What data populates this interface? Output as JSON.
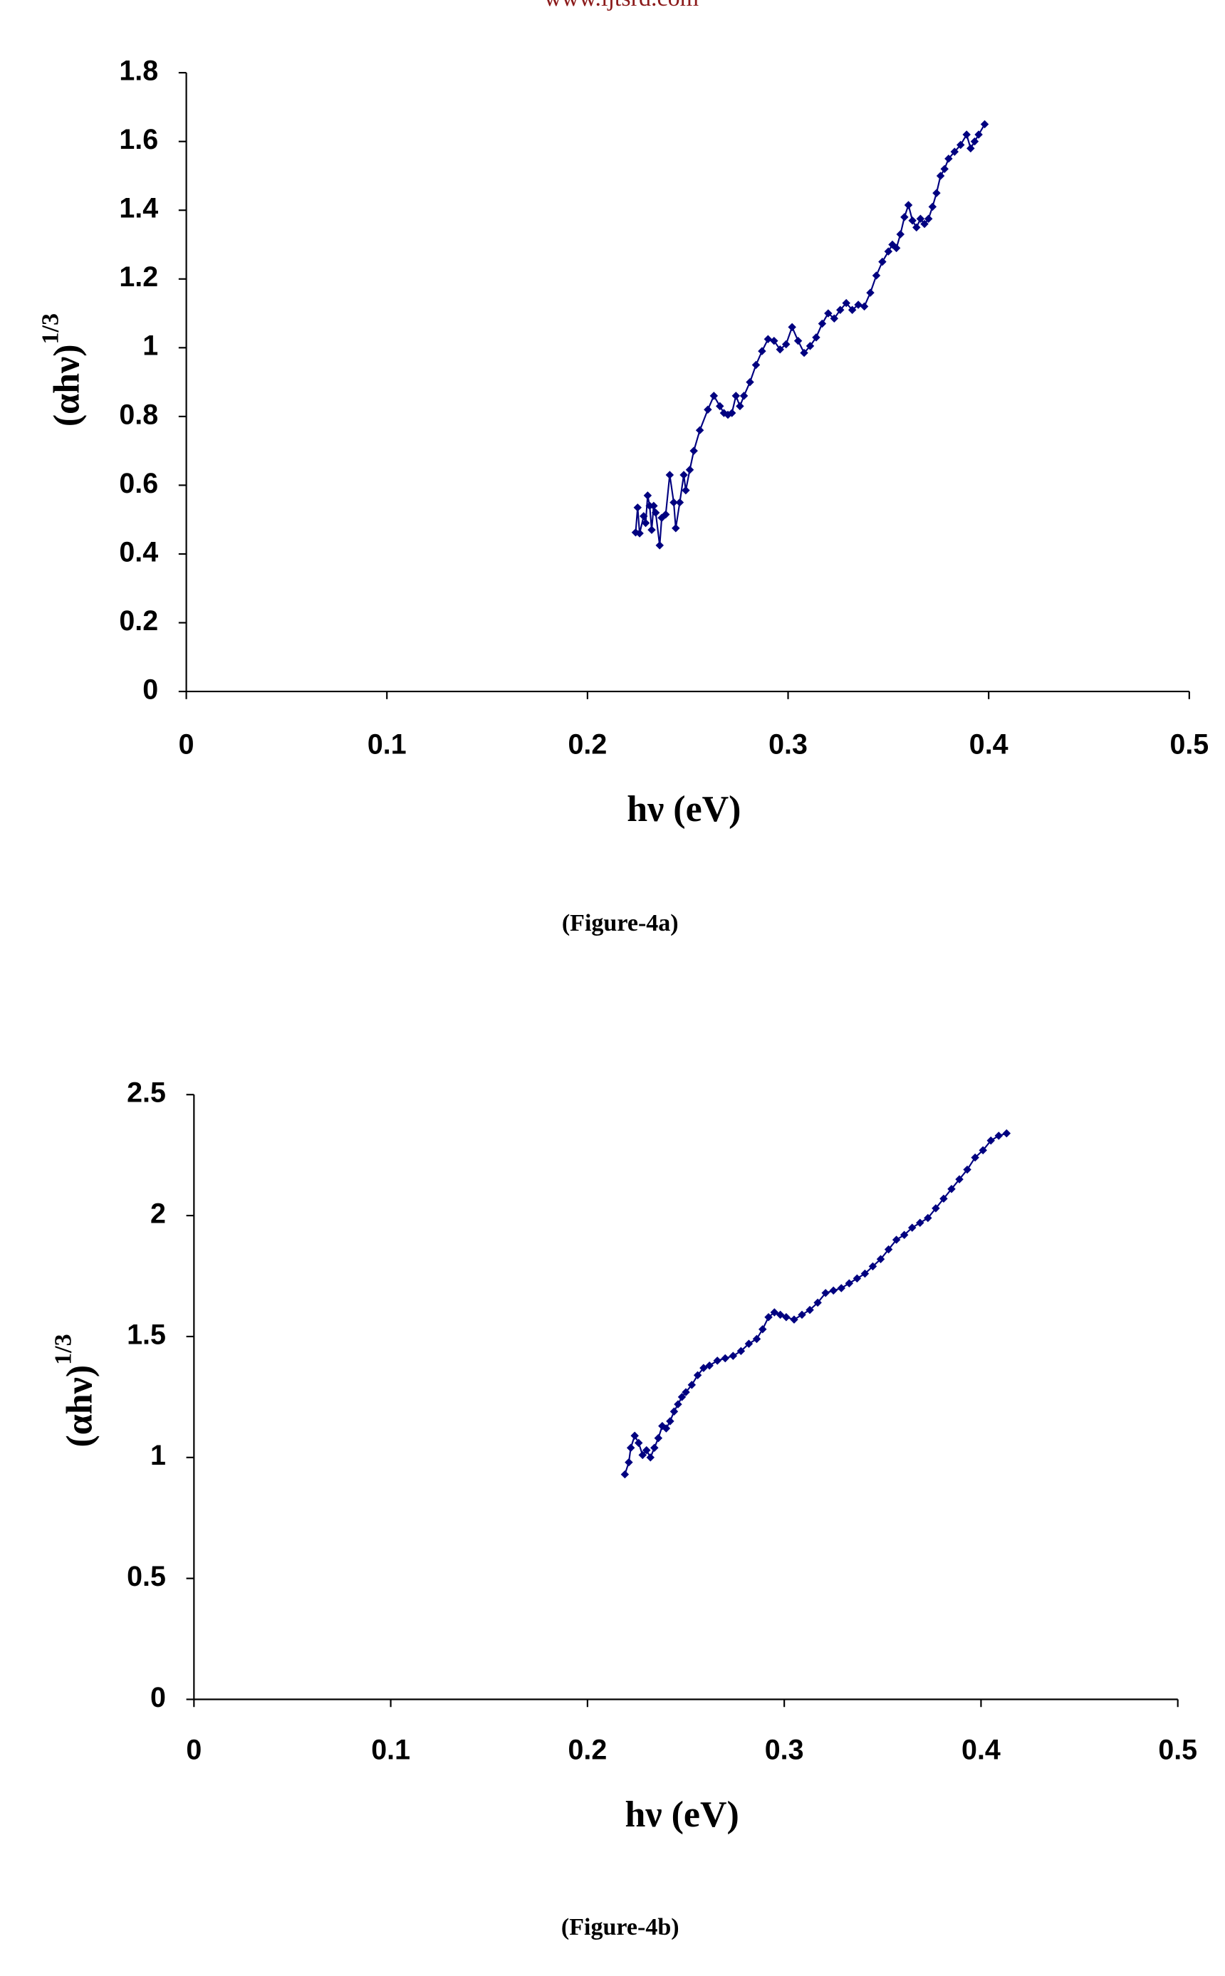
{
  "header": "www.ijtsrd.com",
  "chart_data": [
    {
      "type": "line",
      "xlabel": "hν (eV)",
      "ylabel": "(αhν)",
      "ylabel_superscript": "1/3",
      "caption": "(Figure-4a)",
      "color": "#000080",
      "xlim": [
        0,
        0.5
      ],
      "xticks": [
        0,
        0.1,
        0.2,
        0.3,
        0.4,
        0.5
      ],
      "ylim": [
        0,
        1.8
      ],
      "yticks": [
        0,
        0.2,
        0.4,
        0.6,
        0.8,
        1,
        1.2,
        1.4,
        1.6,
        1.8
      ],
      "x": [
        0.224,
        0.225,
        0.226,
        0.228,
        0.229,
        0.23,
        0.231,
        0.232,
        0.233,
        0.234,
        0.236,
        0.237,
        0.239,
        0.241,
        0.243,
        0.244,
        0.246,
        0.248,
        0.249,
        0.251,
        0.253,
        0.256,
        0.26,
        0.263,
        0.266,
        0.268,
        0.27,
        0.272,
        0.274,
        0.276,
        0.278,
        0.281,
        0.284,
        0.287,
        0.29,
        0.293,
        0.296,
        0.299,
        0.302,
        0.305,
        0.308,
        0.311,
        0.314,
        0.317,
        0.32,
        0.323,
        0.326,
        0.329,
        0.332,
        0.335,
        0.338,
        0.341,
        0.344,
        0.347,
        0.35,
        0.352,
        0.354,
        0.356,
        0.358,
        0.36,
        0.362,
        0.364,
        0.366,
        0.368,
        0.37,
        0.372,
        0.374,
        0.376,
        0.378,
        0.38,
        0.383,
        0.386,
        0.389,
        0.391,
        0.393,
        0.395,
        0.398
      ],
      "values": [
        0.4625,
        0.535,
        0.46,
        0.51,
        0.49,
        0.57,
        0.54,
        0.47,
        0.54,
        0.52,
        0.425,
        0.505,
        0.515,
        0.63,
        0.55,
        0.475,
        0.55,
        0.63,
        0.585,
        0.645,
        0.7,
        0.76,
        0.82,
        0.86,
        0.83,
        0.81,
        0.805,
        0.81,
        0.86,
        0.83,
        0.86,
        0.9,
        0.95,
        0.99,
        1.025,
        1.02,
        0.995,
        1.01,
        1.06,
        1.02,
        0.985,
        1.005,
        1.03,
        1.07,
        1.1,
        1.085,
        1.11,
        1.13,
        1.11,
        1.125,
        1.12,
        1.16,
        1.21,
        1.25,
        1.28,
        1.3,
        1.29,
        1.33,
        1.38,
        1.415,
        1.37,
        1.35,
        1.375,
        1.36,
        1.375,
        1.41,
        1.45,
        1.5,
        1.52,
        1.55,
        1.57,
        1.59,
        1.62,
        1.58,
        1.6,
        1.62,
        1.65
      ]
    },
    {
      "type": "line",
      "xlabel": "hν (eV)",
      "ylabel": "(αhν)",
      "ylabel_superscript": "1/3",
      "caption": "(Figure-4b)",
      "color": "#000080",
      "xlim": [
        0,
        0.5
      ],
      "xticks": [
        0,
        0.1,
        0.2,
        0.3,
        0.4,
        0.5
      ],
      "ylim": [
        0,
        2.5
      ],
      "yticks": [
        0,
        0.5,
        1,
        1.5,
        2,
        2.5
      ],
      "x": [
        0.219,
        0.221,
        0.222,
        0.224,
        0.226,
        0.228,
        0.23,
        0.232,
        0.234,
        0.236,
        0.238,
        0.24,
        0.242,
        0.244,
        0.246,
        0.248,
        0.25,
        0.253,
        0.256,
        0.259,
        0.262,
        0.266,
        0.27,
        0.274,
        0.278,
        0.282,
        0.286,
        0.289,
        0.292,
        0.295,
        0.298,
        0.301,
        0.305,
        0.309,
        0.313,
        0.317,
        0.321,
        0.325,
        0.329,
        0.333,
        0.337,
        0.341,
        0.345,
        0.349,
        0.353,
        0.357,
        0.361,
        0.365,
        0.369,
        0.373,
        0.377,
        0.381,
        0.385,
        0.389,
        0.393,
        0.397,
        0.401,
        0.405,
        0.409,
        0.413
      ],
      "values": [
        0.93,
        0.98,
        1.04,
        1.09,
        1.06,
        1.01,
        1.03,
        1.0,
        1.04,
        1.08,
        1.13,
        1.12,
        1.15,
        1.19,
        1.22,
        1.25,
        1.27,
        1.3,
        1.34,
        1.37,
        1.38,
        1.4,
        1.41,
        1.42,
        1.44,
        1.47,
        1.49,
        1.53,
        1.58,
        1.6,
        1.59,
        1.58,
        1.57,
        1.59,
        1.61,
        1.64,
        1.68,
        1.69,
        1.7,
        1.72,
        1.74,
        1.76,
        1.79,
        1.82,
        1.86,
        1.9,
        1.92,
        1.95,
        1.97,
        1.99,
        2.03,
        2.07,
        2.11,
        2.15,
        2.19,
        2.24,
        2.27,
        2.31,
        2.33,
        2.34
      ]
    }
  ]
}
